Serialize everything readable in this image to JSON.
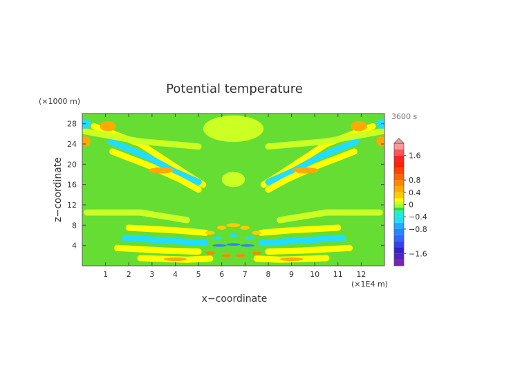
{
  "chart_data": {
    "type": "heatmap",
    "title": "Potential temperature",
    "time_label": "3600 s",
    "xlabel": "x−coordinate",
    "ylabel": "z−coordinate",
    "x_unit": "(×1E4 m)",
    "y_unit": "(×1000 m)",
    "xlim": [
      0,
      13
    ],
    "ylim": [
      0,
      30
    ],
    "x_ticks": [
      {
        "value": 1,
        "label": "1"
      },
      {
        "value": 2,
        "label": "2"
      },
      {
        "value": 3,
        "label": "3"
      },
      {
        "value": 4,
        "label": "4"
      },
      {
        "value": 5,
        "label": "5"
      },
      {
        "value": 6,
        "label": "6"
      },
      {
        "value": 7,
        "label": "7"
      },
      {
        "value": 8,
        "label": "8"
      },
      {
        "value": 9,
        "label": "9"
      },
      {
        "value": 10,
        "label": "10"
      },
      {
        "value": 11,
        "label": "11"
      },
      {
        "value": 12,
        "label": "12"
      }
    ],
    "y_ticks": [
      {
        "value": 4,
        "label": "4"
      },
      {
        "value": 8,
        "label": "8"
      },
      {
        "value": 12,
        "label": "12"
      },
      {
        "value": 16,
        "label": "16"
      },
      {
        "value": 20,
        "label": "20"
      },
      {
        "value": 24,
        "label": "24"
      },
      {
        "value": 28,
        "label": "28"
      }
    ],
    "grid": false,
    "colorbar": {
      "placement": "right",
      "range": [
        -2.0,
        2.0
      ],
      "levels": [
        {
          "value": 2.0,
          "color": "#ff9999"
        },
        {
          "value": 1.8,
          "color": "#ff5555"
        },
        {
          "value": 1.6,
          "color": "#ff2222"
        },
        {
          "value": 1.4,
          "color": "#ff2200"
        },
        {
          "value": 1.2,
          "color": "#ff4400"
        },
        {
          "value": 1.0,
          "color": "#ff6600"
        },
        {
          "value": 0.8,
          "color": "#ff8800"
        },
        {
          "value": 0.6,
          "color": "#ffaa00"
        },
        {
          "value": 0.4,
          "color": "#ffcc00"
        },
        {
          "value": 0.2,
          "color": "#ffff00"
        },
        {
          "value": 0.1,
          "color": "#ccff22"
        },
        {
          "value": 0.0,
          "color": "#99ff33"
        },
        {
          "value": -0.1,
          "color": "#33dd33"
        },
        {
          "value": -0.2,
          "color": "#22eecc"
        },
        {
          "value": -0.4,
          "color": "#22ddff"
        },
        {
          "value": -0.6,
          "color": "#22aaff"
        },
        {
          "value": -0.8,
          "color": "#2288ff"
        },
        {
          "value": -1.0,
          "color": "#3366ff"
        },
        {
          "value": -1.2,
          "color": "#3344ee"
        },
        {
          "value": -1.4,
          "color": "#3322cc"
        },
        {
          "value": -1.6,
          "color": "#5522bb"
        },
        {
          "value": -1.8,
          "color": "#7722bb"
        },
        {
          "value": -2.0,
          "color": "#9933cc"
        }
      ],
      "labels": [
        {
          "value": 1.6,
          "label": "1.6"
        },
        {
          "value": 0.8,
          "label": "0.8"
        },
        {
          "value": 0.4,
          "label": "0.4"
        },
        {
          "value": 0.0,
          "label": "0"
        },
        {
          "value": -0.4,
          "label": "−0.4"
        },
        {
          "value": -0.8,
          "label": "−0.8"
        },
        {
          "value": -1.6,
          "label": "−1.6"
        }
      ]
    },
    "background_color": "#66dd33",
    "contour_regions": [
      {
        "shape": "band",
        "points": [
          [
            0.5,
            27.5
          ],
          [
            2.5,
            24
          ],
          [
            3.5,
            21
          ],
          [
            4.5,
            18
          ],
          [
            5.2,
            16
          ]
        ],
        "value": 0.2
      },
      {
        "shape": "band",
        "points": [
          [
            1.2,
            24.5
          ],
          [
            2.8,
            21.5
          ],
          [
            4.0,
            18.5
          ],
          [
            5.0,
            16.5
          ]
        ],
        "value": -0.4
      },
      {
        "shape": "band",
        "points": [
          [
            1.3,
            22.5
          ],
          [
            3.0,
            19.5
          ],
          [
            4.2,
            17.0
          ],
          [
            5.0,
            15.0
          ]
        ],
        "value": 0.2
      },
      {
        "shape": "band",
        "points": [
          [
            12.5,
            27.5
          ],
          [
            10.5,
            24
          ],
          [
            9.5,
            21
          ],
          [
            8.5,
            18
          ],
          [
            7.8,
            16
          ]
        ],
        "value": 0.2
      },
      {
        "shape": "band",
        "points": [
          [
            11.8,
            24.5
          ],
          [
            10.2,
            21.5
          ],
          [
            9.0,
            18.5
          ],
          [
            8.0,
            16.5
          ]
        ],
        "value": -0.4
      },
      {
        "shape": "band",
        "points": [
          [
            11.7,
            22.5
          ],
          [
            10.0,
            19.5
          ],
          [
            8.8,
            17.0
          ],
          [
            8.0,
            15.0
          ]
        ],
        "value": 0.2
      },
      {
        "shape": "band",
        "points": [
          [
            0.1,
            26.5
          ],
          [
            2.5,
            24.5
          ],
          [
            5.0,
            23.5
          ]
        ],
        "value": 0.1
      },
      {
        "shape": "band",
        "points": [
          [
            12.9,
            26.5
          ],
          [
            10.5,
            24.5
          ],
          [
            8.0,
            23.5
          ]
        ],
        "value": 0.1
      },
      {
        "shape": "band",
        "points": [
          [
            0.2,
            10.5
          ],
          [
            2.5,
            10.5
          ],
          [
            4.5,
            9.0
          ]
        ],
        "value": 0.1
      },
      {
        "shape": "band",
        "points": [
          [
            12.8,
            10.5
          ],
          [
            10.5,
            10.5
          ],
          [
            8.5,
            9.0
          ]
        ],
        "value": 0.1
      },
      {
        "shape": "band",
        "points": [
          [
            2.0,
            7.5
          ],
          [
            4.0,
            7.0
          ],
          [
            5.3,
            6.5
          ]
        ],
        "value": 0.2
      },
      {
        "shape": "band",
        "points": [
          [
            11.0,
            7.5
          ],
          [
            9.0,
            7.0
          ],
          [
            7.7,
            6.5
          ]
        ],
        "value": 0.2
      },
      {
        "shape": "band",
        "points": [
          [
            1.8,
            5.5
          ],
          [
            3.5,
            5.0
          ],
          [
            5.3,
            4.5
          ]
        ],
        "value": -0.4
      },
      {
        "shape": "band",
        "points": [
          [
            11.2,
            5.5
          ],
          [
            9.5,
            5.0
          ],
          [
            7.7,
            4.5
          ]
        ],
        "value": -0.4
      },
      {
        "shape": "band",
        "points": [
          [
            1.5,
            3.5
          ],
          [
            3.5,
            3.0
          ],
          [
            5.0,
            2.8
          ]
        ],
        "value": 0.2
      },
      {
        "shape": "band",
        "points": [
          [
            11.5,
            3.5
          ],
          [
            9.5,
            3.0
          ],
          [
            8.0,
            2.8
          ]
        ],
        "value": 0.2
      },
      {
        "shape": "band",
        "points": [
          [
            2.5,
            1.5
          ],
          [
            4.5,
            1.2
          ],
          [
            5.5,
            1.4
          ]
        ],
        "value": 0.2
      },
      {
        "shape": "band",
        "points": [
          [
            10.5,
            1.5
          ],
          [
            8.5,
            1.2
          ],
          [
            7.5,
            1.4
          ]
        ],
        "value": 0.2
      },
      {
        "shape": "blob",
        "cx": 1.1,
        "cy": 27.5,
        "rx": 0.35,
        "ry": 1.0,
        "value": 0.6
      },
      {
        "shape": "blob",
        "cx": 11.9,
        "cy": 27.5,
        "rx": 0.35,
        "ry": 1.0,
        "value": 0.6
      },
      {
        "shape": "blob",
        "cx": 3.4,
        "cy": 18.8,
        "rx": 0.55,
        "ry": 0.6,
        "value": 0.6
      },
      {
        "shape": "blob",
        "cx": 9.6,
        "cy": 18.8,
        "rx": 0.55,
        "ry": 0.6,
        "value": 0.6
      },
      {
        "shape": "blob",
        "cx": 0.1,
        "cy": 28.0,
        "rx": 0.25,
        "ry": 1.0,
        "value": -0.4
      },
      {
        "shape": "blob",
        "cx": 12.9,
        "cy": 28.0,
        "rx": 0.25,
        "ry": 1.0,
        "value": -0.4
      },
      {
        "shape": "blob",
        "cx": 0.15,
        "cy": 24.5,
        "rx": 0.2,
        "ry": 1.0,
        "value": 0.6
      },
      {
        "shape": "blob",
        "cx": 12.85,
        "cy": 24.5,
        "rx": 0.2,
        "ry": 1.0,
        "value": 0.6
      },
      {
        "shape": "blob",
        "cx": 6.5,
        "cy": 27.0,
        "rx": 1.3,
        "ry": 2.6,
        "value": 0.1
      },
      {
        "shape": "blob",
        "cx": 6.5,
        "cy": 17.0,
        "rx": 0.5,
        "ry": 1.5,
        "value": 0.1
      },
      {
        "shape": "blob",
        "cx": 4.0,
        "cy": 1.3,
        "rx": 0.5,
        "ry": 0.35,
        "value": 0.6
      },
      {
        "shape": "blob",
        "cx": 9.0,
        "cy": 1.3,
        "rx": 0.5,
        "ry": 0.35,
        "value": 0.6
      },
      {
        "shape": "blob",
        "cx": 5.9,
        "cy": 4.0,
        "rx": 0.3,
        "ry": 0.25,
        "value": -0.8
      },
      {
        "shape": "blob",
        "cx": 7.1,
        "cy": 4.0,
        "rx": 0.3,
        "ry": 0.25,
        "value": -0.8
      },
      {
        "shape": "blob",
        "cx": 6.5,
        "cy": 4.2,
        "rx": 0.3,
        "ry": 0.25,
        "value": -0.8
      },
      {
        "shape": "blob",
        "cx": 5.5,
        "cy": 6.5,
        "rx": 0.2,
        "ry": 0.4,
        "value": 0.4
      },
      {
        "shape": "blob",
        "cx": 6.0,
        "cy": 7.5,
        "rx": 0.2,
        "ry": 0.4,
        "value": 0.4
      },
      {
        "shape": "blob",
        "cx": 7.0,
        "cy": 7.5,
        "rx": 0.2,
        "ry": 0.4,
        "value": 0.4
      },
      {
        "shape": "blob",
        "cx": 7.5,
        "cy": 6.5,
        "rx": 0.2,
        "ry": 0.4,
        "value": 0.4
      },
      {
        "shape": "blob",
        "cx": 6.5,
        "cy": 8.0,
        "rx": 0.3,
        "ry": 0.4,
        "value": 0.4
      },
      {
        "shape": "blob",
        "cx": 5.5,
        "cy": 2.5,
        "rx": 0.2,
        "ry": 0.3,
        "value": 0.8
      },
      {
        "shape": "blob",
        "cx": 6.2,
        "cy": 2.0,
        "rx": 0.2,
        "ry": 0.3,
        "value": 0.8
      },
      {
        "shape": "blob",
        "cx": 6.8,
        "cy": 2.0,
        "rx": 0.2,
        "ry": 0.3,
        "value": 0.8
      },
      {
        "shape": "blob",
        "cx": 7.5,
        "cy": 2.5,
        "rx": 0.2,
        "ry": 0.3,
        "value": 0.8
      },
      {
        "shape": "blob",
        "cx": 5.8,
        "cy": 5.5,
        "rx": 0.2,
        "ry": 0.3,
        "value": -0.4
      },
      {
        "shape": "blob",
        "cx": 7.2,
        "cy": 5.5,
        "rx": 0.2,
        "ry": 0.3,
        "value": -0.4
      },
      {
        "shape": "blob",
        "cx": 6.5,
        "cy": 6.0,
        "rx": 0.2,
        "ry": 0.3,
        "value": -0.4
      }
    ]
  }
}
